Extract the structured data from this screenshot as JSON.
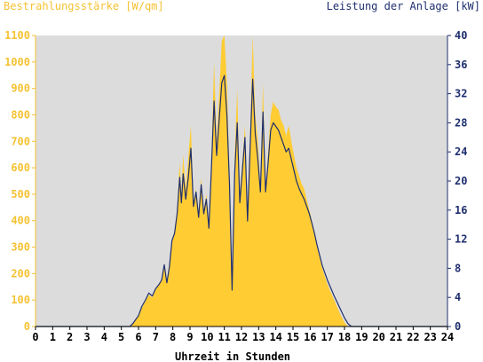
{
  "colors": {
    "plot_background": "#dcdcdc",
    "irradiance_fill": "#ffcc33",
    "irradiance_axis": "#f5c232",
    "power_line": "#1f2f6e",
    "x_axis": "#000000"
  },
  "chart_data": {
    "type": "area",
    "ylabel_left": "Bestrahlungsstärke [W/qm]",
    "ylabel_right": "Leistung der Anlage [kW]",
    "xlabel": "Uhrzeit in Stunden",
    "xlim": [
      0,
      24
    ],
    "ylim_left": [
      0,
      1100
    ],
    "ylim_right": [
      0,
      40
    ],
    "x_ticks": [
      "0",
      "1",
      "2",
      "3",
      "4",
      "5",
      "6",
      "7",
      "8",
      "9",
      "10",
      "11",
      "12",
      "13",
      "14",
      "15",
      "16",
      "17",
      "18",
      "19",
      "20",
      "21",
      "22",
      "23",
      "24"
    ],
    "y_ticks_left": [
      "0",
      "100",
      "200",
      "300",
      "400",
      "500",
      "600",
      "700",
      "800",
      "900",
      "1000",
      "1100"
    ],
    "y_ticks_right": [
      "0",
      "4",
      "8",
      "12",
      "16",
      "20",
      "24",
      "28",
      "32",
      "36",
      "40"
    ],
    "grid": false,
    "series": [
      {
        "name": "Bestrahlungsstärke [W/qm]",
        "axis": "left",
        "style": "area",
        "x": [
          0,
          5.5,
          5.7,
          6.0,
          6.2,
          6.4,
          6.6,
          6.8,
          7.0,
          7.2,
          7.35,
          7.5,
          7.65,
          7.8,
          7.95,
          8.1,
          8.25,
          8.4,
          8.5,
          8.6,
          8.75,
          8.9,
          9.05,
          9.2,
          9.35,
          9.5,
          9.65,
          9.8,
          9.95,
          10.1,
          10.25,
          10.4,
          10.55,
          10.7,
          10.85,
          11.0,
          11.15,
          11.3,
          11.45,
          11.6,
          11.75,
          11.9,
          12.05,
          12.2,
          12.35,
          12.5,
          12.65,
          12.8,
          12.95,
          13.1,
          13.25,
          13.4,
          13.55,
          13.7,
          13.85,
          14.0,
          14.15,
          14.3,
          14.45,
          14.6,
          14.75,
          14.9,
          15.05,
          15.2,
          15.35,
          15.5,
          15.65,
          15.8,
          15.95,
          16.1,
          16.25,
          16.4,
          16.55,
          16.7,
          16.85,
          17.0,
          17.2,
          17.4,
          17.6,
          17.8,
          18.0,
          18.2,
          18.4,
          18.6,
          18.8,
          19.0,
          19.2,
          19.4,
          19.6,
          19.8,
          20.0,
          20.2,
          20.4,
          20.6,
          24
        ],
        "values": [
          0,
          0,
          15,
          40,
          70,
          95,
          120,
          110,
          140,
          160,
          180,
          240,
          170,
          230,
          330,
          360,
          440,
          620,
          500,
          650,
          520,
          640,
          760,
          470,
          520,
          430,
          560,
          440,
          500,
          380,
          640,
          1000,
          700,
          880,
          1080,
          1100,
          920,
          560,
          140,
          640,
          900,
          500,
          620,
          760,
          400,
          720,
          1100,
          800,
          700,
          520,
          920,
          520,
          660,
          800,
          850,
          830,
          820,
          780,
          760,
          720,
          760,
          700,
          650,
          600,
          570,
          540,
          520,
          480,
          440,
          400,
          350,
          300,
          260,
          220,
          190,
          160,
          130,
          100,
          70,
          40,
          15,
          0,
          0,
          0,
          0,
          0,
          0,
          0,
          0,
          0,
          0,
          0,
          0,
          0,
          0
        ],
        "color": "#ffcc33"
      },
      {
        "name": "Leistung der Anlage [kW]",
        "axis": "right",
        "style": "line",
        "x": [
          0,
          5.5,
          5.7,
          6.0,
          6.2,
          6.4,
          6.6,
          6.8,
          7.0,
          7.2,
          7.35,
          7.5,
          7.65,
          7.8,
          7.95,
          8.1,
          8.25,
          8.4,
          8.5,
          8.6,
          8.75,
          8.9,
          9.05,
          9.2,
          9.35,
          9.5,
          9.65,
          9.8,
          9.95,
          10.1,
          10.25,
          10.4,
          10.55,
          10.7,
          10.85,
          11.0,
          11.15,
          11.3,
          11.45,
          11.6,
          11.75,
          11.9,
          12.05,
          12.2,
          12.35,
          12.5,
          12.65,
          12.8,
          12.95,
          13.1,
          13.25,
          13.4,
          13.55,
          13.7,
          13.85,
          14.0,
          14.15,
          14.3,
          14.45,
          14.6,
          14.75,
          14.9,
          15.05,
          15.2,
          15.35,
          15.5,
          15.65,
          15.8,
          15.95,
          16.1,
          16.25,
          16.4,
          16.55,
          16.7,
          16.85,
          17.0,
          17.2,
          17.4,
          17.6,
          17.8,
          18.0,
          18.2,
          18.4,
          18.6,
          18.8,
          19.0,
          19.2,
          19.4,
          19.6,
          19.8,
          20.0,
          20.2,
          20.4,
          20.6,
          24
        ],
        "values": [
          0,
          0,
          0.5,
          1.5,
          2.8,
          3.6,
          4.6,
          4.2,
          5.2,
          5.8,
          6.4,
          8.5,
          6.0,
          8.2,
          11.8,
          12.8,
          15.5,
          20.5,
          17.0,
          21.0,
          17.5,
          20.5,
          24.5,
          16.5,
          18.5,
          15.0,
          19.5,
          15.5,
          17.5,
          13.5,
          22.0,
          31.0,
          23.5,
          28.5,
          33.5,
          34.5,
          29.0,
          19.5,
          5.0,
          21.0,
          28.0,
          17.0,
          21.5,
          26.0,
          14.5,
          24.5,
          34.0,
          26.5,
          23.0,
          18.5,
          29.5,
          18.5,
          22.5,
          27.0,
          28.0,
          27.5,
          27.0,
          26.0,
          25.0,
          24.0,
          24.5,
          23.0,
          21.5,
          20.0,
          19.0,
          18.2,
          17.5,
          16.5,
          15.5,
          14.2,
          12.8,
          11.2,
          9.8,
          8.4,
          7.4,
          6.4,
          5.3,
          4.2,
          3.2,
          2.2,
          1.2,
          0.4,
          0,
          0,
          0,
          0,
          0,
          0,
          0,
          0,
          0,
          0,
          0,
          0,
          0
        ],
        "color": "#1f2f6e"
      }
    ]
  }
}
